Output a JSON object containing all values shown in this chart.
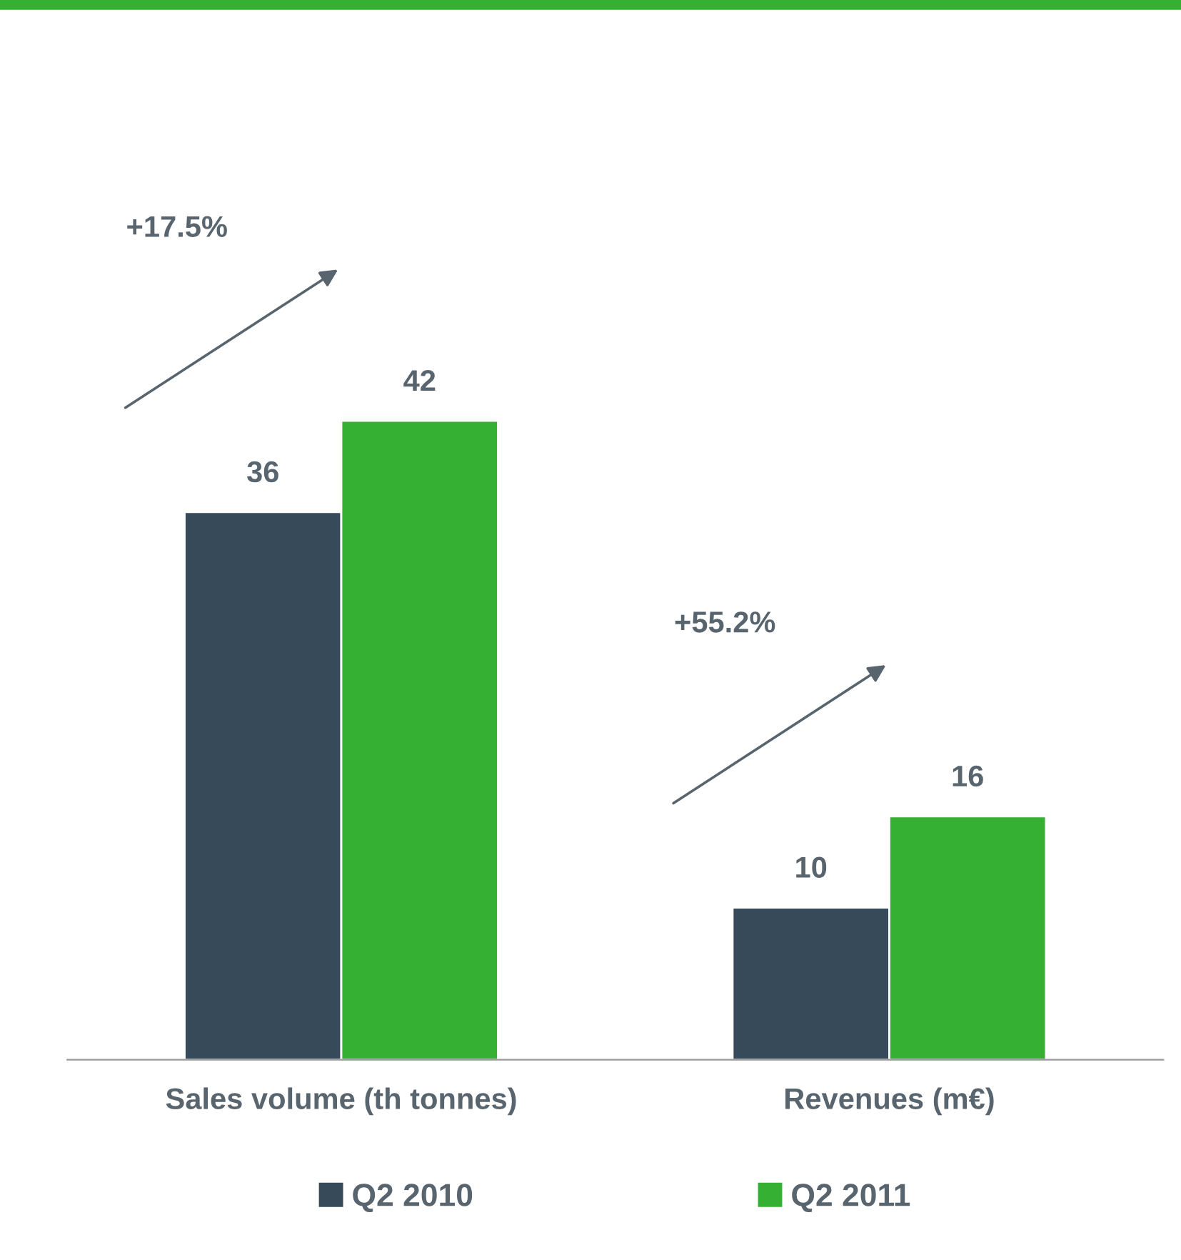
{
  "chart_data": {
    "type": "bar",
    "categories": [
      "Sales volume (th tonnes)",
      "Revenues (m€)"
    ],
    "series": [
      {
        "name": "Q2 2010",
        "color": "#374a5a",
        "values": [
          36,
          10
        ]
      },
      {
        "name": "Q2 2011",
        "color": "#36b032",
        "values": [
          42,
          16
        ]
      }
    ],
    "data_labels": true,
    "legend": "bottom",
    "grid": false,
    "tick_labels": "x",
    "annotations": [
      "+17.5%",
      "+55.2%"
    ]
  }
}
